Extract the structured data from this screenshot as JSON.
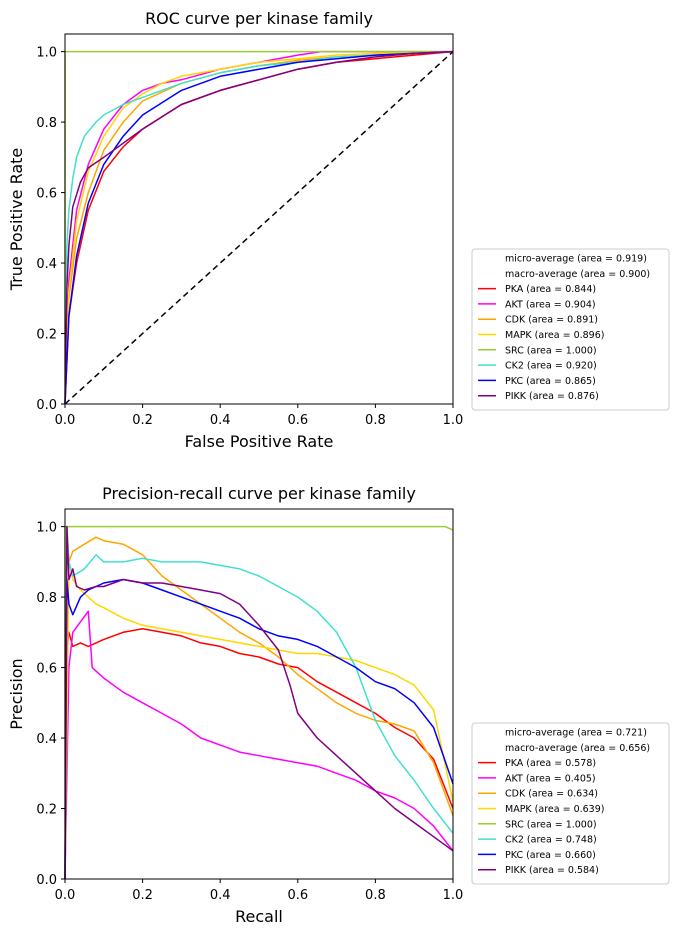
{
  "chart_data": [
    {
      "type": "line",
      "title": "ROC curve per kinase family",
      "xlabel": "False Positive Rate",
      "ylabel": "True Positive Rate",
      "xlim": [
        0.0,
        1.0
      ],
      "ylim": [
        0.0,
        1.05
      ],
      "xticks": [
        "0.0",
        "0.2",
        "0.4",
        "0.6",
        "0.8",
        "1.0"
      ],
      "yticks": [
        "0.0",
        "0.2",
        "0.4",
        "0.6",
        "0.8",
        "1.0"
      ],
      "grid": false,
      "legend_position": "outside-right",
      "legend": [
        {
          "label": "micro-average (area = 0.919)",
          "color": "#ffffff"
        },
        {
          "label": "macro-average (area = 0.900)",
          "color": "#ffffff"
        },
        {
          "label": "PKA (area = 0.844)",
          "color": "#ff0000"
        },
        {
          "label": "AKT (area = 0.904)",
          "color": "#ff00ff"
        },
        {
          "label": "CDK (area = 0.891)",
          "color": "#ffa500"
        },
        {
          "label": "MAPK (area = 0.896)",
          "color": "#ffd700"
        },
        {
          "label": "SRC (area = 1.000)",
          "color": "#9acd32"
        },
        {
          "label": "CK2 (area = 0.920)",
          "color": "#40e0d0"
        },
        {
          "label": "PKC (area = 0.865)",
          "color": "#0000ff"
        },
        {
          "label": "PIKK (area = 0.876)",
          "color": "#800080"
        }
      ],
      "series": [
        {
          "name": "PKA",
          "color": "#ff0000",
          "x": [
            0,
            0.01,
            0.03,
            0.06,
            0.1,
            0.15,
            0.2,
            0.3,
            0.4,
            0.5,
            0.6,
            0.7,
            0.8,
            0.9,
            1.0
          ],
          "y": [
            0,
            0.25,
            0.4,
            0.55,
            0.66,
            0.73,
            0.78,
            0.85,
            0.89,
            0.92,
            0.95,
            0.97,
            0.98,
            0.99,
            1.0
          ]
        },
        {
          "name": "AKT",
          "color": "#ff00ff",
          "x": [
            0,
            0.01,
            0.03,
            0.06,
            0.1,
            0.15,
            0.2,
            0.25,
            0.3,
            0.4,
            0.5,
            0.6,
            0.66,
            0.7,
            0.8,
            1.0
          ],
          "y": [
            0,
            0.35,
            0.55,
            0.68,
            0.78,
            0.85,
            0.89,
            0.91,
            0.92,
            0.95,
            0.97,
            0.99,
            1.0,
            1.0,
            1.0,
            1.0
          ]
        },
        {
          "name": "CDK",
          "color": "#ffa500",
          "x": [
            0,
            0.01,
            0.03,
            0.06,
            0.1,
            0.15,
            0.2,
            0.3,
            0.4,
            0.5,
            0.6,
            0.7,
            0.8,
            0.9,
            1.0
          ],
          "y": [
            0,
            0.3,
            0.47,
            0.6,
            0.72,
            0.8,
            0.86,
            0.91,
            0.94,
            0.96,
            0.975,
            0.985,
            0.99,
            0.995,
            1.0
          ]
        },
        {
          "name": "MAPK",
          "color": "#ffd700",
          "x": [
            0,
            0.01,
            0.03,
            0.06,
            0.1,
            0.15,
            0.2,
            0.25,
            0.3,
            0.4,
            0.5,
            0.6,
            0.7,
            0.8,
            1.0
          ],
          "y": [
            0,
            0.32,
            0.52,
            0.66,
            0.76,
            0.84,
            0.88,
            0.91,
            0.93,
            0.95,
            0.97,
            0.98,
            0.99,
            0.995,
            1.0
          ]
        },
        {
          "name": "SRC",
          "color": "#9acd32",
          "x": [
            0,
            0,
            1.0
          ],
          "y": [
            0,
            1.0,
            1.0
          ]
        },
        {
          "name": "CK2",
          "color": "#40e0d0",
          "x": [
            0,
            0.005,
            0.01,
            0.02,
            0.03,
            0.05,
            0.08,
            0.1,
            0.15,
            0.2,
            0.3,
            0.4,
            0.5,
            0.6,
            0.7,
            0.8,
            0.9,
            1.0
          ],
          "y": [
            0,
            0.45,
            0.55,
            0.64,
            0.7,
            0.76,
            0.8,
            0.82,
            0.85,
            0.87,
            0.91,
            0.94,
            0.96,
            0.97,
            0.985,
            0.99,
            0.995,
            1.0
          ]
        },
        {
          "name": "PKC",
          "color": "#0000ff",
          "x": [
            0,
            0.01,
            0.03,
            0.06,
            0.1,
            0.15,
            0.2,
            0.3,
            0.4,
            0.5,
            0.6,
            0.7,
            0.8,
            0.9,
            1.0
          ],
          "y": [
            0,
            0.25,
            0.42,
            0.57,
            0.68,
            0.76,
            0.82,
            0.89,
            0.93,
            0.95,
            0.97,
            0.98,
            0.99,
            0.995,
            1.0
          ]
        },
        {
          "name": "PIKK",
          "color": "#800080",
          "x": [
            0,
            0.005,
            0.01,
            0.02,
            0.04,
            0.06,
            0.1,
            0.15,
            0.2,
            0.3,
            0.4,
            0.5,
            0.6,
            0.7,
            0.8,
            0.9,
            1.0
          ],
          "y": [
            0,
            0.33,
            0.45,
            0.56,
            0.63,
            0.67,
            0.7,
            0.74,
            0.78,
            0.85,
            0.89,
            0.92,
            0.95,
            0.97,
            0.985,
            0.995,
            1.0
          ]
        }
      ],
      "reference_line": {
        "x": [
          0,
          1
        ],
        "y": [
          0,
          1
        ],
        "color": "#000000",
        "style": "dashed"
      }
    },
    {
      "type": "line",
      "title": "Precision-recall curve per kinase family",
      "xlabel": "Recall",
      "ylabel": "Precision",
      "xlim": [
        0.0,
        1.0
      ],
      "ylim": [
        0.0,
        1.05
      ],
      "xticks": [
        "0.0",
        "0.2",
        "0.4",
        "0.6",
        "0.8",
        "1.0"
      ],
      "yticks": [
        "0.0",
        "0.2",
        "0.4",
        "0.6",
        "0.8",
        "1.0"
      ],
      "grid": false,
      "legend_position": "outside-right",
      "legend": [
        {
          "label": "micro-average (area = 0.721)",
          "color": "#ffffff"
        },
        {
          "label": "macro-average (area = 0.656)",
          "color": "#ffffff"
        },
        {
          "label": "PKA (area = 0.578)",
          "color": "#ff0000"
        },
        {
          "label": "AKT (area = 0.405)",
          "color": "#ff00ff"
        },
        {
          "label": "CDK (area = 0.634)",
          "color": "#ffa500"
        },
        {
          "label": "MAPK (area = 0.639)",
          "color": "#ffd700"
        },
        {
          "label": "SRC (area = 1.000)",
          "color": "#9acd32"
        },
        {
          "label": "CK2 (area = 0.748)",
          "color": "#40e0d0"
        },
        {
          "label": "PKC (area = 0.660)",
          "color": "#0000ff"
        },
        {
          "label": "PIKK (area = 0.584)",
          "color": "#800080"
        }
      ],
      "series": [
        {
          "name": "PKA",
          "color": "#ff0000",
          "x": [
            0,
            0.005,
            0.01,
            0.02,
            0.04,
            0.06,
            0.1,
            0.15,
            0.2,
            0.25,
            0.3,
            0.35,
            0.4,
            0.45,
            0.5,
            0.55,
            0.6,
            0.65,
            0.7,
            0.75,
            0.8,
            0.85,
            0.9,
            0.95,
            1.0
          ],
          "y": [
            0,
            0.65,
            0.7,
            0.66,
            0.67,
            0.66,
            0.68,
            0.7,
            0.71,
            0.7,
            0.69,
            0.67,
            0.66,
            0.64,
            0.63,
            0.61,
            0.6,
            0.56,
            0.53,
            0.5,
            0.47,
            0.43,
            0.4,
            0.34,
            0.2
          ]
        },
        {
          "name": "AKT",
          "color": "#ff00ff",
          "x": [
            0,
            0.005,
            0.01,
            0.02,
            0.04,
            0.06,
            0.07,
            0.08,
            0.1,
            0.15,
            0.2,
            0.25,
            0.3,
            0.35,
            0.4,
            0.45,
            0.5,
            0.55,
            0.6,
            0.65,
            0.7,
            0.75,
            0.8,
            0.85,
            0.9,
            0.95,
            1.0
          ],
          "y": [
            0,
            0.3,
            0.6,
            0.7,
            0.73,
            0.76,
            0.6,
            0.59,
            0.57,
            0.53,
            0.5,
            0.47,
            0.44,
            0.4,
            0.38,
            0.36,
            0.35,
            0.34,
            0.33,
            0.32,
            0.3,
            0.28,
            0.25,
            0.23,
            0.2,
            0.15,
            0.08
          ]
        },
        {
          "name": "CDK",
          "color": "#ffa500",
          "x": [
            0,
            0.005,
            0.01,
            0.02,
            0.05,
            0.08,
            0.1,
            0.15,
            0.2,
            0.25,
            0.3,
            0.35,
            0.4,
            0.45,
            0.5,
            0.55,
            0.6,
            0.65,
            0.7,
            0.75,
            0.8,
            0.85,
            0.9,
            0.95,
            1.0
          ],
          "y": [
            0,
            1.0,
            0.9,
            0.93,
            0.95,
            0.97,
            0.96,
            0.95,
            0.92,
            0.86,
            0.82,
            0.78,
            0.74,
            0.7,
            0.67,
            0.63,
            0.58,
            0.54,
            0.5,
            0.47,
            0.45,
            0.44,
            0.42,
            0.33,
            0.18
          ]
        },
        {
          "name": "MAPK",
          "color": "#ffd700",
          "x": [
            0,
            0.01,
            0.02,
            0.04,
            0.06,
            0.08,
            0.1,
            0.15,
            0.2,
            0.25,
            0.3,
            0.35,
            0.4,
            0.45,
            0.5,
            0.55,
            0.6,
            0.65,
            0.7,
            0.75,
            0.8,
            0.85,
            0.9,
            0.95,
            1.0
          ],
          "y": [
            0,
            0.9,
            0.85,
            0.82,
            0.8,
            0.78,
            0.77,
            0.74,
            0.72,
            0.71,
            0.7,
            0.69,
            0.68,
            0.67,
            0.66,
            0.65,
            0.64,
            0.64,
            0.63,
            0.62,
            0.6,
            0.58,
            0.55,
            0.48,
            0.22
          ]
        },
        {
          "name": "SRC",
          "color": "#9acd32",
          "x": [
            0,
            0,
            0.98,
            1.0
          ],
          "y": [
            0,
            1.0,
            1.0,
            0.99
          ]
        },
        {
          "name": "CK2",
          "color": "#40e0d0",
          "x": [
            0,
            0.005,
            0.01,
            0.02,
            0.05,
            0.08,
            0.1,
            0.15,
            0.2,
            0.25,
            0.3,
            0.35,
            0.4,
            0.45,
            0.5,
            0.55,
            0.6,
            0.65,
            0.7,
            0.75,
            0.8,
            0.85,
            0.9,
            0.95,
            1.0
          ],
          "y": [
            0,
            1.0,
            0.9,
            0.86,
            0.88,
            0.92,
            0.9,
            0.9,
            0.91,
            0.9,
            0.9,
            0.9,
            0.89,
            0.88,
            0.86,
            0.83,
            0.8,
            0.76,
            0.7,
            0.6,
            0.45,
            0.35,
            0.28,
            0.2,
            0.13
          ]
        },
        {
          "name": "PKC",
          "color": "#0000ff",
          "x": [
            0,
            0.005,
            0.01,
            0.02,
            0.04,
            0.06,
            0.1,
            0.15,
            0.2,
            0.25,
            0.3,
            0.35,
            0.4,
            0.45,
            0.5,
            0.55,
            0.6,
            0.65,
            0.7,
            0.75,
            0.8,
            0.85,
            0.9,
            0.95,
            1.0
          ],
          "y": [
            0,
            0.85,
            0.78,
            0.75,
            0.8,
            0.82,
            0.84,
            0.85,
            0.84,
            0.82,
            0.8,
            0.78,
            0.76,
            0.74,
            0.71,
            0.69,
            0.68,
            0.66,
            0.63,
            0.6,
            0.56,
            0.54,
            0.5,
            0.43,
            0.27
          ]
        },
        {
          "name": "PIKK",
          "color": "#800080",
          "x": [
            0,
            0.005,
            0.01,
            0.02,
            0.03,
            0.05,
            0.08,
            0.1,
            0.15,
            0.2,
            0.25,
            0.3,
            0.35,
            0.4,
            0.45,
            0.5,
            0.55,
            0.58,
            0.6,
            0.65,
            0.7,
            0.75,
            0.8,
            0.85,
            0.9,
            0.95,
            1.0
          ],
          "y": [
            0,
            1.0,
            0.85,
            0.88,
            0.83,
            0.82,
            0.83,
            0.83,
            0.85,
            0.84,
            0.84,
            0.83,
            0.82,
            0.81,
            0.78,
            0.72,
            0.65,
            0.55,
            0.47,
            0.4,
            0.35,
            0.3,
            0.25,
            0.2,
            0.16,
            0.12,
            0.08
          ]
        }
      ]
    }
  ]
}
